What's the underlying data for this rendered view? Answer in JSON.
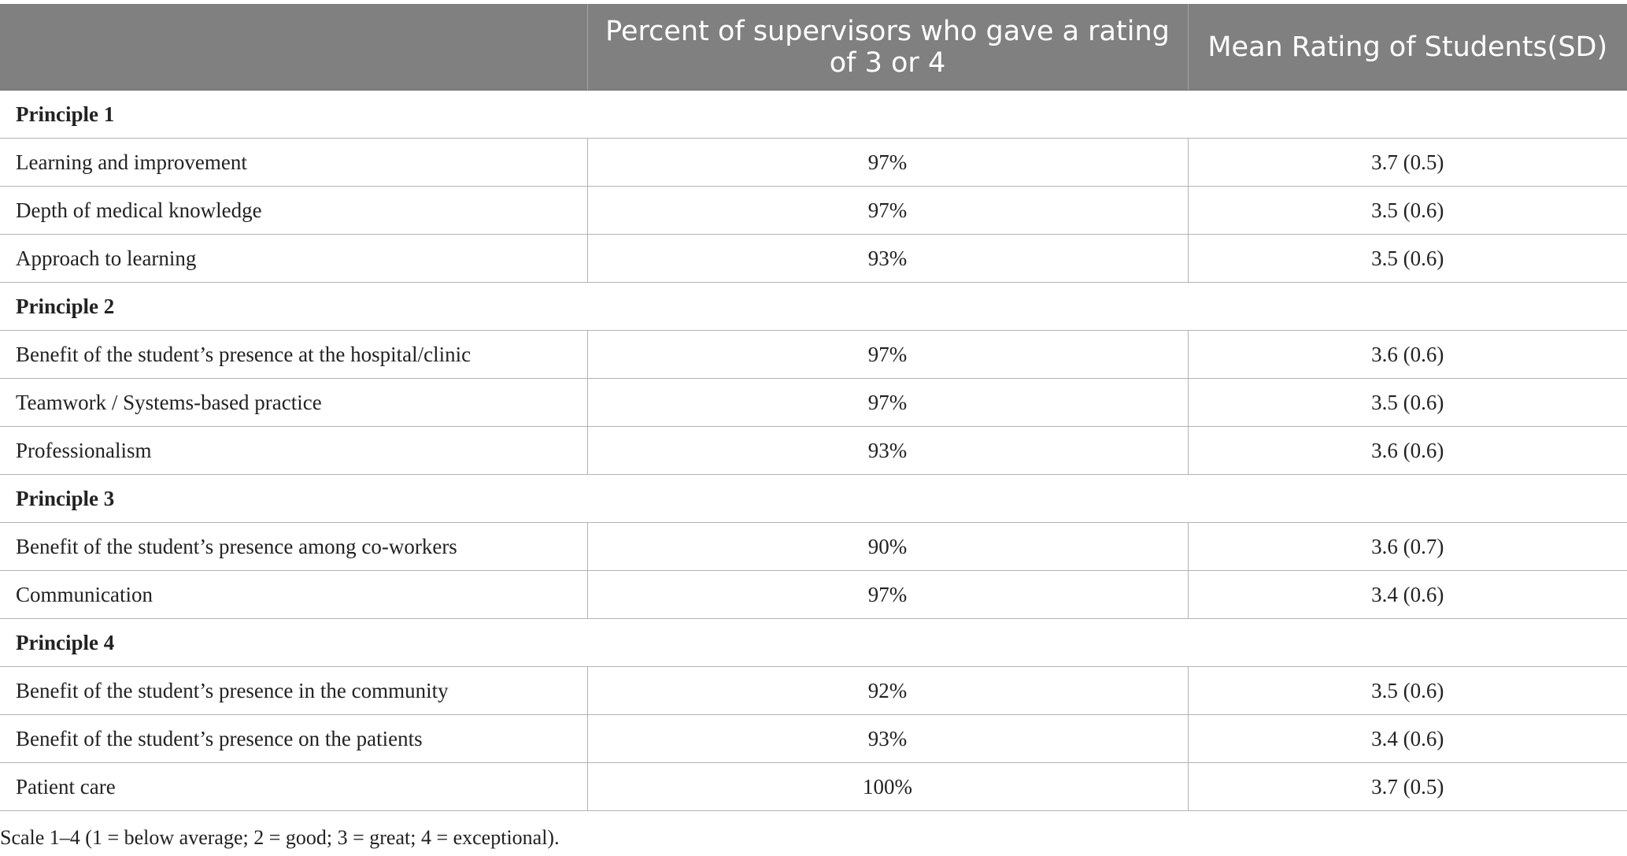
{
  "table": {
    "headers": [
      "",
      "Percent of supervisors who gave a rating of 3 or 4",
      "Mean Rating of Students(SD)"
    ],
    "sections": [
      {
        "title": "Principle 1",
        "rows": [
          {
            "label": "Learning and improvement",
            "percent": "97%",
            "mean": "3.7 (0.5)"
          },
          {
            "label": "Depth of medical knowledge",
            "percent": "97%",
            "mean": "3.5 (0.6)"
          },
          {
            "label": "Approach to learning",
            "percent": "93%",
            "mean": "3.5 (0.6)"
          }
        ]
      },
      {
        "title": "Principle 2",
        "rows": [
          {
            "label": "Benefit of the student’s presence at the hospital/clinic",
            "percent": "97%",
            "mean": "3.6 (0.6)"
          },
          {
            "label": "Teamwork / Systems-based practice",
            "percent": "97%",
            "mean": "3.5 (0.6)"
          },
          {
            "label": "Professionalism",
            "percent": "93%",
            "mean": "3.6 (0.6)"
          }
        ]
      },
      {
        "title": "Principle 3",
        "rows": [
          {
            "label": "Benefit of the student’s presence among co-workers",
            "percent": "90%",
            "mean": "3.6 (0.7)"
          },
          {
            "label": "Communication",
            "percent": "97%",
            "mean": "3.4 (0.6)"
          }
        ]
      },
      {
        "title": "Principle 4",
        "rows": [
          {
            "label": "Benefit of the student’s presence in the community",
            "percent": "92%",
            "mean": "3.5 (0.6)"
          },
          {
            "label": "Benefit of the student’s presence on the patients",
            "percent": "93%",
            "mean": "3.4 (0.6)"
          },
          {
            "label": "Patient care",
            "percent": "100%",
            "mean": "3.7 (0.5)"
          }
        ]
      }
    ]
  },
  "footnote": "Scale 1–4 (1 = below average; 2 = good; 3 = great; 4 = exceptional).",
  "colors": {
    "header_background": "#808080",
    "header_text": "#ffffff",
    "grid_lines": "#b3b3b3"
  }
}
